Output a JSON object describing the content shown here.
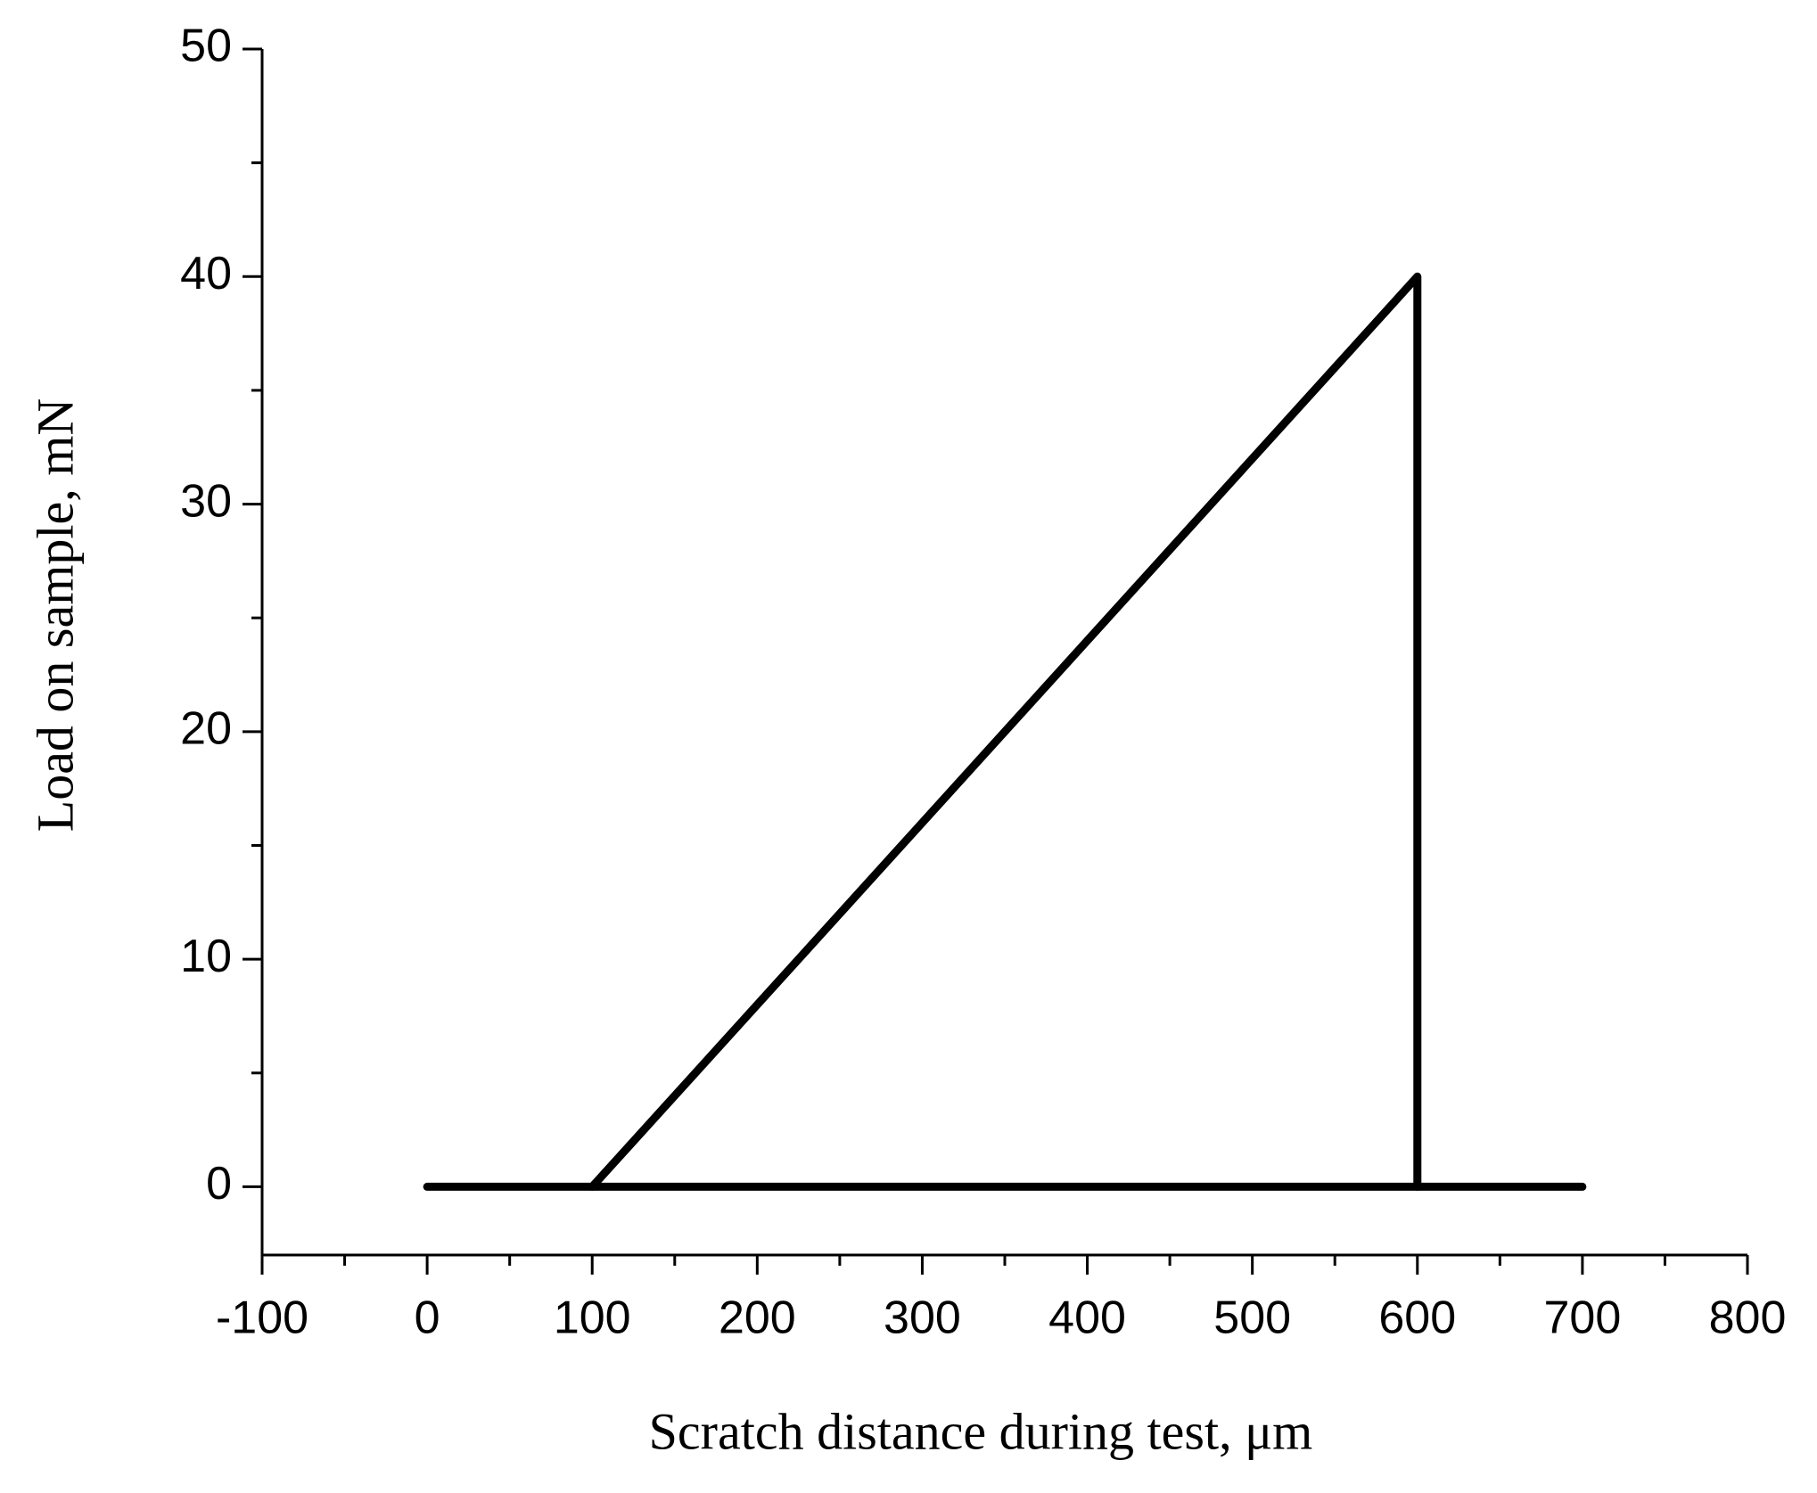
{
  "chart_data": {
    "type": "line",
    "x_label": "Scratch distance during test, μm",
    "y_label": "Load on sample, mN",
    "series": [
      {
        "color": "#000000",
        "x": [
          0,
          700
        ],
        "values": [
          0,
          0
        ]
      },
      {
        "color": "#000000",
        "x": [
          100,
          600,
          600
        ],
        "values": [
          0,
          40,
          0
        ]
      }
    ],
    "xlim": [
      -100,
      800
    ],
    "xticks": [
      -100,
      0,
      100,
      200,
      300,
      400,
      500,
      600,
      700,
      800
    ],
    "xminor_ticks": [
      -50,
      50,
      150,
      250,
      350,
      450,
      550,
      650,
      750
    ],
    "ylim": [
      -3,
      50
    ],
    "yticks": [
      0,
      10,
      20,
      30,
      40,
      50
    ],
    "yminor_ticks": [
      5,
      15,
      25,
      35,
      45
    ],
    "grid": false
  }
}
